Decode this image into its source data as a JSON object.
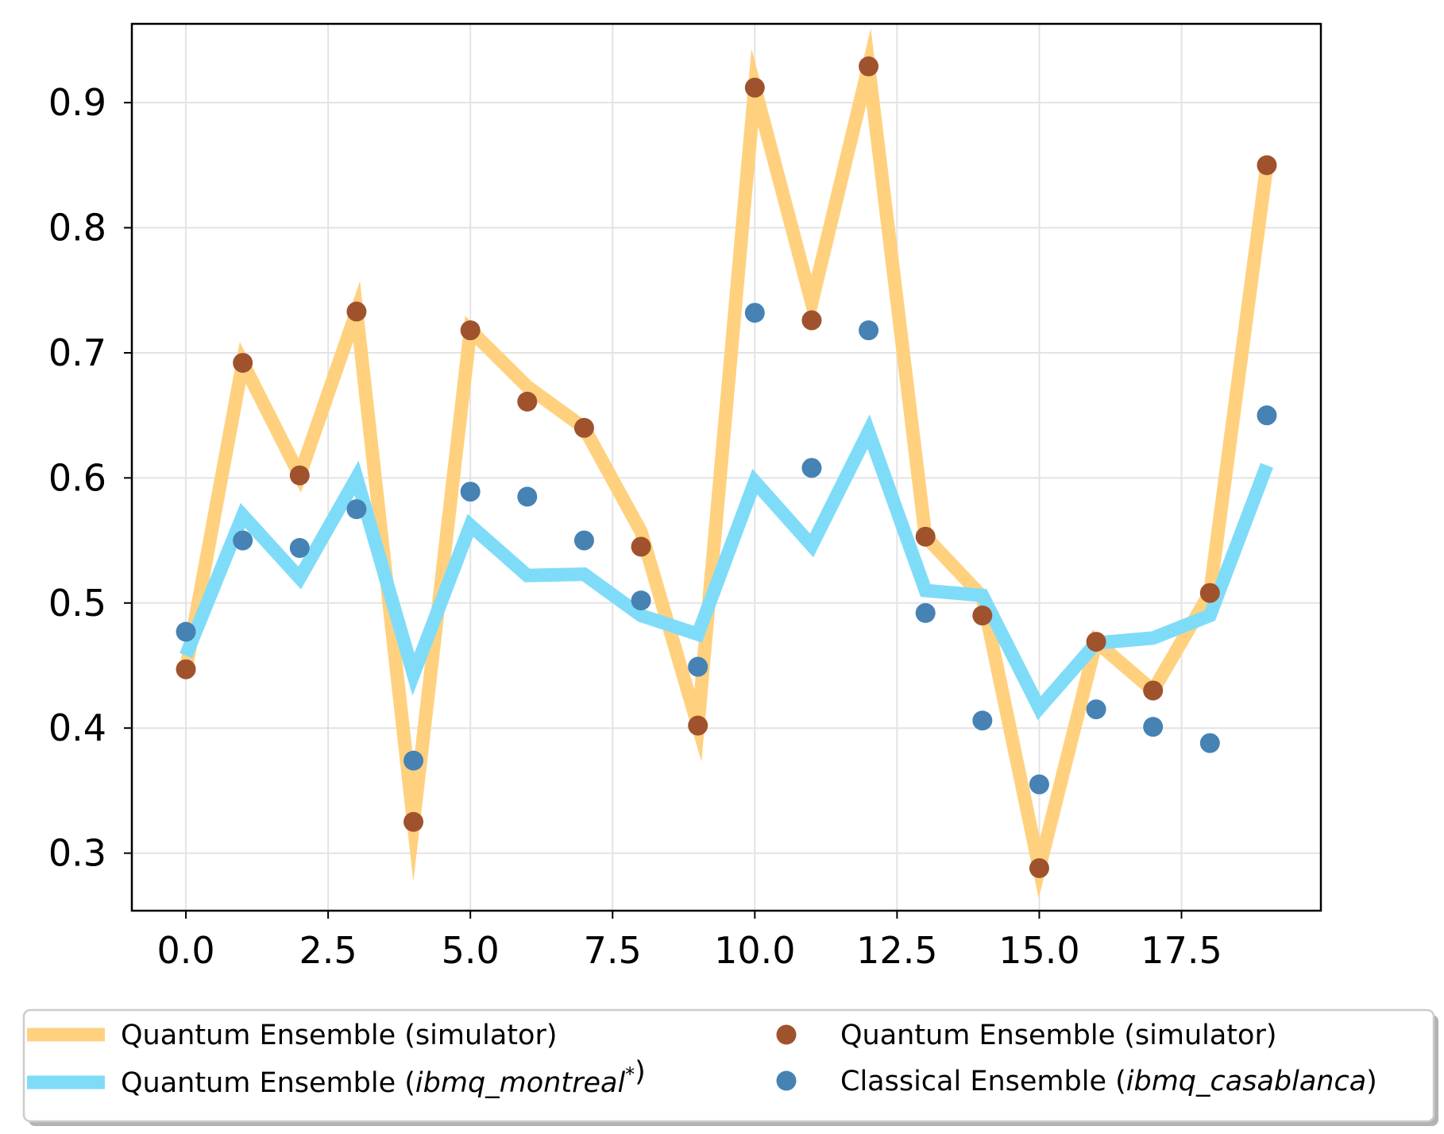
{
  "chart_data": {
    "type": "line",
    "title": "",
    "xlabel": "",
    "ylabel": "",
    "xlim": [
      -0.95,
      19.95
    ],
    "ylim": [
      0.254,
      0.963
    ],
    "xticks": [
      0.0,
      2.5,
      5.0,
      7.5,
      10.0,
      12.5,
      15.0,
      17.5
    ],
    "xtick_labels": [
      "0.0",
      "2.5",
      "5.0",
      "7.5",
      "10.0",
      "12.5",
      "15.0",
      "17.5"
    ],
    "yticks": [
      0.3,
      0.4,
      0.5,
      0.6,
      0.7,
      0.8,
      0.9
    ],
    "ytick_labels": [
      "0.3",
      "0.4",
      "0.5",
      "0.6",
      "0.7",
      "0.8",
      "0.9"
    ],
    "grid": true,
    "legend_position": "bottom",
    "x": [
      0,
      1,
      2,
      3,
      4,
      5,
      6,
      7,
      8,
      9,
      10,
      11,
      12,
      13,
      14,
      15,
      16,
      17,
      18,
      19
    ],
    "series": [
      {
        "kind": "line",
        "label_parts": [
          {
            "t": "Quantum Ensemble (simulator)",
            "i": false
          }
        ],
        "color": "#ffd17f",
        "values": [
          0.447,
          0.692,
          0.602,
          0.733,
          0.325,
          0.718,
          0.673,
          0.64,
          0.557,
          0.402,
          0.912,
          0.74,
          0.929,
          0.553,
          0.505,
          0.288,
          0.469,
          0.43,
          0.508,
          0.85
        ]
      },
      {
        "kind": "line",
        "label_parts": [
          {
            "t": "Quantum Ensemble (",
            "i": false
          },
          {
            "t": "ibmq_montreal",
            "i": true
          },
          {
            "t": "*",
            "i": false,
            "sup": true
          },
          {
            "t": ")",
            "i": false
          }
        ],
        "color": "#7fdcf9",
        "values": [
          0.458,
          0.57,
          0.52,
          0.6,
          0.443,
          0.562,
          0.522,
          0.523,
          0.49,
          0.475,
          0.597,
          0.546,
          0.637,
          0.51,
          0.506,
          0.416,
          0.468,
          0.472,
          0.49,
          0.61
        ]
      },
      {
        "kind": "scatter",
        "label_parts": [
          {
            "t": "Quantum Ensemble (simulator)",
            "i": false
          }
        ],
        "color": "#a0522d",
        "values": [
          0.447,
          0.692,
          0.602,
          0.733,
          0.325,
          0.718,
          0.661,
          0.64,
          0.545,
          0.402,
          0.912,
          0.726,
          0.929,
          0.553,
          0.49,
          0.288,
          0.469,
          0.43,
          0.508,
          0.85
        ]
      },
      {
        "kind": "scatter",
        "label_parts": [
          {
            "t": "Classical Ensemble (",
            "i": false
          },
          {
            "t": "ibmq_casablanca",
            "i": true
          },
          {
            "t": ")",
            "i": false
          }
        ],
        "color": "#4682b4",
        "values": [
          0.477,
          0.55,
          0.544,
          0.575,
          0.374,
          0.589,
          0.585,
          0.55,
          0.502,
          0.449,
          0.732,
          0.608,
          0.718,
          0.492,
          0.406,
          0.355,
          0.415,
          0.401,
          0.388,
          0.65
        ]
      }
    ]
  }
}
